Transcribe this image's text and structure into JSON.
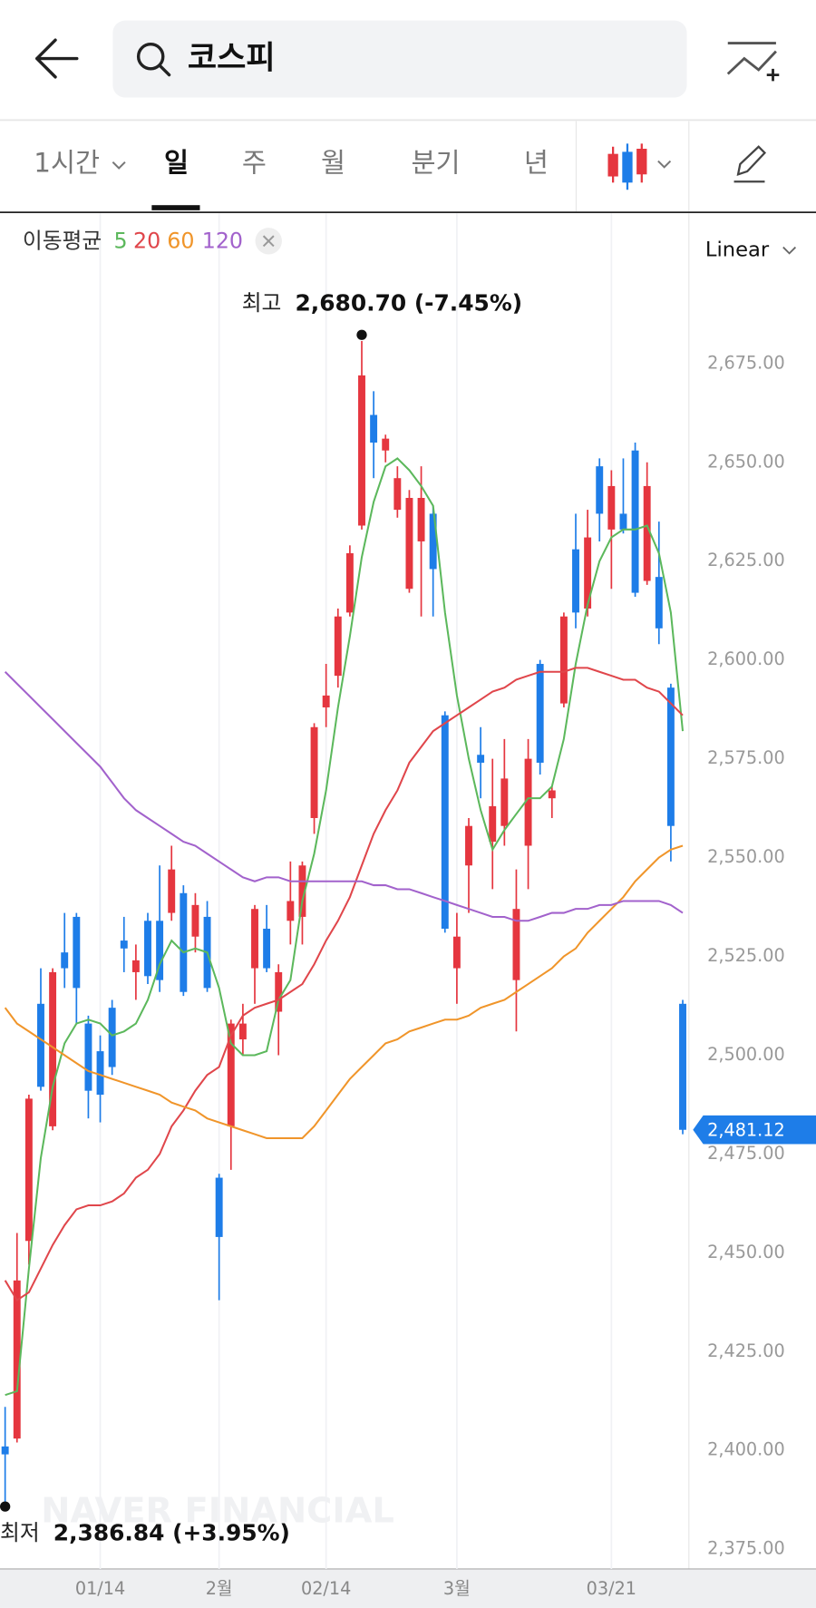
{
  "header": {
    "search": "코스피"
  },
  "tabs": [
    "1시간",
    "일",
    "주",
    "월",
    "분기",
    "년"
  ],
  "chart_data": {
    "type": "candlestick",
    "scale_mode": "Linear",
    "watermark": "NAVER FINANCIAL",
    "ma_label": "이동평균",
    "up_color": "#e5363f",
    "down_color": "#1e7de8",
    "ylim": [
      2370,
      2713
    ],
    "yticks": [
      {
        "value": 2375,
        "label": "2,375.00"
      },
      {
        "value": 2400,
        "label": "2,400.00"
      },
      {
        "value": 2425,
        "label": "2,425.00"
      },
      {
        "value": 2450,
        "label": "2,450.00"
      },
      {
        "value": 2475,
        "label": "2,475.00"
      },
      {
        "value": 2500,
        "label": "2,500.00"
      },
      {
        "value": 2525,
        "label": "2,525.00"
      },
      {
        "value": 2550,
        "label": "2,550.00"
      },
      {
        "value": 2575,
        "label": "2,575.00"
      },
      {
        "value": 2600,
        "label": "2,600.00"
      },
      {
        "value": 2625,
        "label": "2,625.00"
      },
      {
        "value": 2650,
        "label": "2,650.00"
      },
      {
        "value": 2675,
        "label": "2,675.00"
      }
    ],
    "categories": [
      null,
      null,
      null,
      null,
      null,
      null,
      null,
      null,
      "01/14",
      null,
      null,
      null,
      null,
      null,
      null,
      null,
      null,
      null,
      "2월",
      null,
      null,
      null,
      null,
      null,
      null,
      null,
      null,
      "02/14",
      null,
      null,
      null,
      null,
      null,
      null,
      null,
      null,
      null,
      null,
      "3월",
      null,
      null,
      null,
      null,
      null,
      null,
      null,
      null,
      null,
      null,
      null,
      null,
      "03/21",
      null,
      null,
      null,
      null,
      null,
      null
    ],
    "open": [
      2401,
      2403,
      2453,
      2513,
      2482,
      2526,
      2535,
      2508,
      2501,
      2512,
      2529,
      2521,
      2534,
      2534,
      2536,
      2541,
      2530,
      2535,
      2469,
      2482,
      2504,
      2522,
      2532,
      2511,
      2534,
      2535,
      2560,
      2588,
      2596,
      2612,
      2634,
      2662,
      2653,
      2638,
      2618,
      2630,
      2637,
      2586,
      2522,
      2548,
      2576,
      2554,
      2558,
      2519,
      2553,
      2599,
      2565,
      2589,
      2628,
      2613,
      2649,
      2633,
      2637,
      2653,
      2620,
      2621,
      2593,
      2513
    ],
    "high": [
      2411,
      2455,
      2490,
      2522,
      2522,
      2536,
      2536,
      2510,
      2505,
      2514,
      2535,
      2528,
      2536,
      2548,
      2553,
      2543,
      2541,
      2539,
      2470,
      2509,
      2513,
      2538,
      2538,
      2523,
      2549,
      2549,
      2584,
      2599,
      2613,
      2629,
      2680.7,
      2668,
      2657,
      2649,
      2643,
      2649,
      2639,
      2587,
      2536,
      2560,
      2583,
      2575,
      2580,
      2547,
      2580,
      2600,
      2568,
      2612,
      2637,
      2638,
      2651,
      2648,
      2651,
      2655,
      2650,
      2635,
      2594,
      2514
    ],
    "low": [
      2386.84,
      2402,
      2447,
      2491,
      2481,
      2517,
      2508,
      2484,
      2483,
      2495,
      2521,
      2514,
      2518,
      2516,
      2534,
      2515,
      2526,
      2516,
      2438,
      2471,
      2500,
      2513,
      2521,
      2500,
      2528,
      2528,
      2556,
      2583,
      2593,
      2611,
      2633,
      2646,
      2650,
      2636,
      2617,
      2611,
      2611,
      2531,
      2513,
      2536,
      2565,
      2542,
      2553,
      2506,
      2542,
      2571,
      2560,
      2588,
      2608,
      2611,
      2630,
      2618,
      2632,
      2616,
      2619,
      2604,
      2549,
      2480
    ],
    "close": [
      2399,
      2443,
      2489,
      2492,
      2521,
      2522,
      2517,
      2491,
      2490,
      2497,
      2527,
      2524,
      2520,
      2519,
      2547,
      2516,
      2538,
      2517,
      2454,
      2508,
      2508,
      2537,
      2522,
      2521,
      2539,
      2548,
      2583,
      2591,
      2611,
      2627,
      2672,
      2655,
      2656,
      2646,
      2641,
      2641,
      2623,
      2532,
      2530,
      2558,
      2574,
      2563,
      2570,
      2537,
      2575,
      2574,
      2567,
      2611,
      2612,
      2631,
      2637,
      2644,
      2633,
      2617,
      2644,
      2608,
      2558,
      2481.12
    ],
    "ma_series": [
      {
        "name": "5",
        "color": "#5cb85c",
        "values": [
          2414,
          2415,
          2446,
          2474,
          2492,
          2503,
          2508,
          2509,
          2508,
          2505,
          2506,
          2508,
          2514,
          2523,
          2529,
          2526,
          2527,
          2526,
          2517,
          2503,
          2500,
          2500,
          2501,
          2514,
          2519,
          2539,
          2551,
          2567,
          2588,
          2606,
          2626,
          2640,
          2649,
          2651,
          2648,
          2644,
          2639,
          2612,
          2591,
          2575,
          2562,
          2552,
          2557,
          2561,
          2565,
          2565,
          2568,
          2580,
          2599,
          2614,
          2625,
          2631,
          2633,
          2633,
          2634,
          2627,
          2612,
          2582
        ]
      },
      {
        "name": "20",
        "color": "#e0464b",
        "values": [
          2443,
          2438,
          2440,
          2446,
          2452,
          2457,
          2461,
          2462,
          2462,
          2463,
          2465,
          2469,
          2471,
          2475,
          2482,
          2486,
          2491,
          2495,
          2497,
          2505,
          2510,
          2512,
          2513,
          2514,
          2516,
          2518,
          2523,
          2529,
          2534,
          2540,
          2548,
          2556,
          2562,
          2567,
          2574,
          2578,
          2582,
          2584,
          2586,
          2588,
          2590,
          2592,
          2593,
          2595,
          2596,
          2597,
          2597,
          2597,
          2598,
          2598,
          2597,
          2596,
          2595,
          2595,
          2593,
          2592,
          2589,
          2586
        ]
      },
      {
        "name": "60",
        "color": "#f0952a",
        "values": [
          2512,
          2508,
          2506,
          2504,
          2502,
          2500,
          2498,
          2496,
          2495,
          2494,
          2493,
          2492,
          2491,
          2490,
          2488,
          2487,
          2486,
          2484,
          2483,
          2482,
          2481,
          2480,
          2479,
          2479,
          2479,
          2479,
          2482,
          2486,
          2490,
          2494,
          2497,
          2500,
          2503,
          2504,
          2506,
          2507,
          2508,
          2509,
          2509,
          2510,
          2512,
          2513,
          2514,
          2516,
          2518,
          2520,
          2522,
          2525,
          2527,
          2531,
          2534,
          2537,
          2540,
          2544,
          2547,
          2550,
          2552,
          2553
        ]
      },
      {
        "name": "120",
        "color": "#a262cc",
        "values": [
          2597,
          2594,
          2591,
          2588,
          2585,
          2582,
          2579,
          2576,
          2573,
          2569,
          2565,
          2562,
          2560,
          2558,
          2556,
          2554,
          2553,
          2551,
          2549,
          2547,
          2545,
          2544,
          2545,
          2545,
          2544,
          2544,
          2544,
          2544,
          2544,
          2544,
          2544,
          2543,
          2543,
          2542,
          2542,
          2541,
          2540,
          2539,
          2538,
          2537,
          2536,
          2535,
          2535,
          2534,
          2534,
          2535,
          2536,
          2536,
          2537,
          2537,
          2538,
          2538,
          2539,
          2539,
          2539,
          2539,
          2538,
          2536
        ]
      }
    ],
    "annotations": {
      "high_label": "최고",
      "high_text": "2,680.70 (-7.45%)",
      "low_label": "최저",
      "low_text": "2,386.84 (+3.95%)"
    },
    "value_labels": {
      "last_close": "2,481.12"
    }
  }
}
